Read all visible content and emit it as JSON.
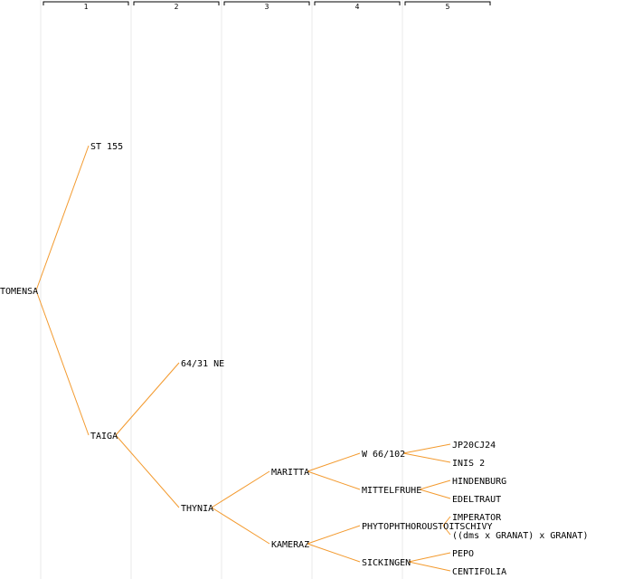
{
  "colors": {
    "edge": "#f39a2e",
    "column_divider": "#e8e8e8",
    "bracket": "#000000",
    "text": "#000000",
    "background": "#ffffff"
  },
  "generation_headers": [
    "1",
    "2",
    "3",
    "4",
    "5"
  ],
  "tree": {
    "root": "TOMENSA",
    "nodes": [
      {
        "id": "tomensa",
        "label": "TOMENSA",
        "gen": 0,
        "parent": null
      },
      {
        "id": "st155",
        "label": "ST 155",
        "gen": 1,
        "parent": "tomensa"
      },
      {
        "id": "taiga",
        "label": "TAIGA",
        "gen": 1,
        "parent": "tomensa"
      },
      {
        "id": "ne6431",
        "label": "64/31 NE",
        "gen": 2,
        "parent": "taiga"
      },
      {
        "id": "thynia",
        "label": "THYNIA",
        "gen": 2,
        "parent": "taiga"
      },
      {
        "id": "maritta",
        "label": "MARITTA",
        "gen": 3,
        "parent": "thynia"
      },
      {
        "id": "kameraz",
        "label": "KAMERAZ",
        "gen": 3,
        "parent": "thynia"
      },
      {
        "id": "w66102",
        "label": "W 66/102",
        "gen": 4,
        "parent": "maritta"
      },
      {
        "id": "mittelfruhe",
        "label": "MITTELFRUHE",
        "gen": 4,
        "parent": "maritta"
      },
      {
        "id": "phyto",
        "label": "PHYTOPHTHOROUSTOITSCHIVY",
        "gen": 4,
        "parent": "kameraz"
      },
      {
        "id": "sickingen",
        "label": "SICKINGEN",
        "gen": 4,
        "parent": "kameraz"
      },
      {
        "id": "jp20cj24",
        "label": "JP20CJ24",
        "gen": 5,
        "parent": "w66102"
      },
      {
        "id": "inis2",
        "label": "INIS 2",
        "gen": 5,
        "parent": "w66102"
      },
      {
        "id": "hindenburg",
        "label": "HINDENBURG",
        "gen": 5,
        "parent": "mittelfruhe"
      },
      {
        "id": "edeltraut",
        "label": "EDELTRAUT",
        "gen": 5,
        "parent": "mittelfruhe"
      },
      {
        "id": "imperator",
        "label": "IMPERATOR",
        "gen": 5,
        "parent": "phyto"
      },
      {
        "id": "dmsgranat",
        "label": "((dms x GRANAT) x GRANAT)",
        "gen": 5,
        "parent": "phyto"
      },
      {
        "id": "pepo",
        "label": "PEPO",
        "gen": 5,
        "parent": "sickingen"
      },
      {
        "id": "centifolia",
        "label": "CENTIFOLIA",
        "gen": 5,
        "parent": "sickingen"
      }
    ]
  }
}
